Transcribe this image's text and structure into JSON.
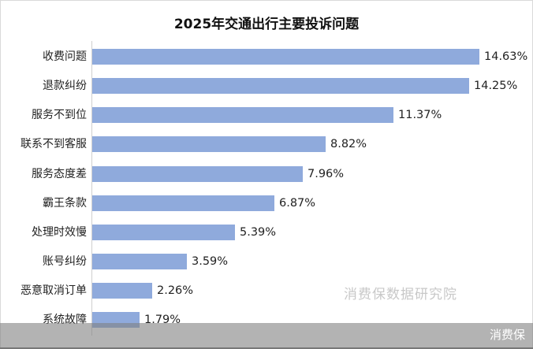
{
  "chart_data": {
    "type": "bar",
    "orientation": "horizontal",
    "title": "2025年交通出行主要投诉问题",
    "categories": [
      "收费问题",
      "退款纠纷",
      "服务不到位",
      "联系不到客服",
      "服务态度差",
      "霸王条款",
      "处理时效慢",
      "账号纠纷",
      "恶意取消订单",
      "系统故障"
    ],
    "values": [
      14.63,
      14.25,
      11.37,
      8.82,
      7.96,
      6.87,
      5.39,
      3.59,
      2.26,
      1.79
    ],
    "value_labels": [
      "14.63%",
      "14.25%",
      "11.37%",
      "8.82%",
      "7.96%",
      "6.87%",
      "5.39%",
      "3.59%",
      "2.26%",
      "1.79%"
    ],
    "xlabel": "",
    "ylabel": "",
    "unit": "%",
    "grid": false,
    "legend": null,
    "bar_color": "#8faadc"
  },
  "watermark": "消费保数据研究院",
  "footer": {
    "brand": "消费保"
  }
}
